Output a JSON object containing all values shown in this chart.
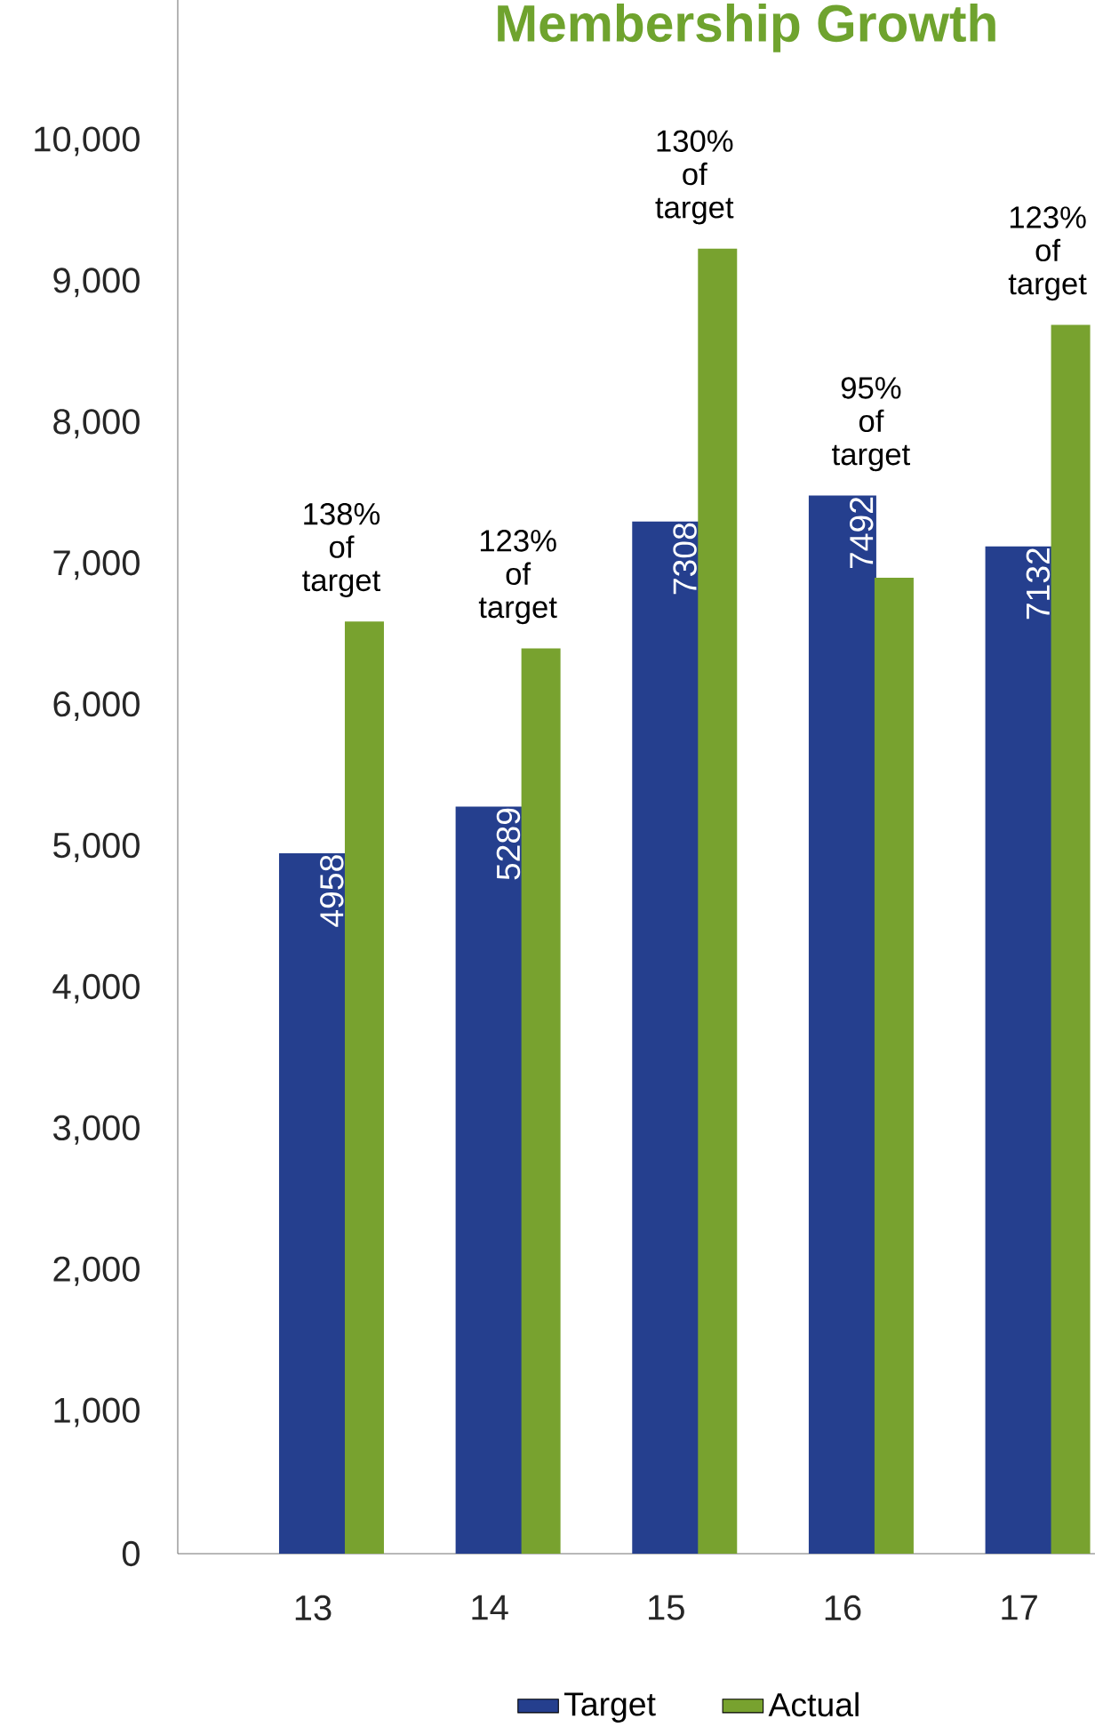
{
  "chart_data": {
    "type": "bar",
    "title": "Membership Growth",
    "categories": [
      "13",
      "14",
      "15",
      "16",
      "17"
    ],
    "series": [
      {
        "name": "Target",
        "color": "#253f8e",
        "values": [
          4958,
          5289,
          7308,
          7492,
          7132
        ],
        "value_labels": [
          "4958",
          "5289",
          "7308",
          "7492",
          "7132"
        ]
      },
      {
        "name": "Actual",
        "color": "#78a22f",
        "values": [
          6600,
          6410,
          9240,
          6910,
          8700
        ]
      }
    ],
    "ylim": [
      0,
      11000
    ],
    "yticks": [
      0,
      {
        "value": 1000,
        "label": "1,000"
      },
      {
        "value": 2000,
        "label": "2,000"
      },
      {
        "value": 3000,
        "label": "3,000"
      },
      {
        "value": 4000,
        "label": "4,000"
      },
      {
        "value": 5000,
        "label": "5,000"
      },
      {
        "value": 6000,
        "label": "6,000"
      },
      {
        "value": 7000,
        "label": "7,000"
      },
      {
        "value": 8000,
        "label": "8,000"
      },
      {
        "value": 9000,
        "label": "9,000"
      },
      {
        "value": 10000,
        "label": "10,000"
      }
    ],
    "annotations": [
      "138% of target",
      "123% of target",
      "130% of target",
      "95% of target",
      "123% of target"
    ],
    "legend": "bottom"
  }
}
